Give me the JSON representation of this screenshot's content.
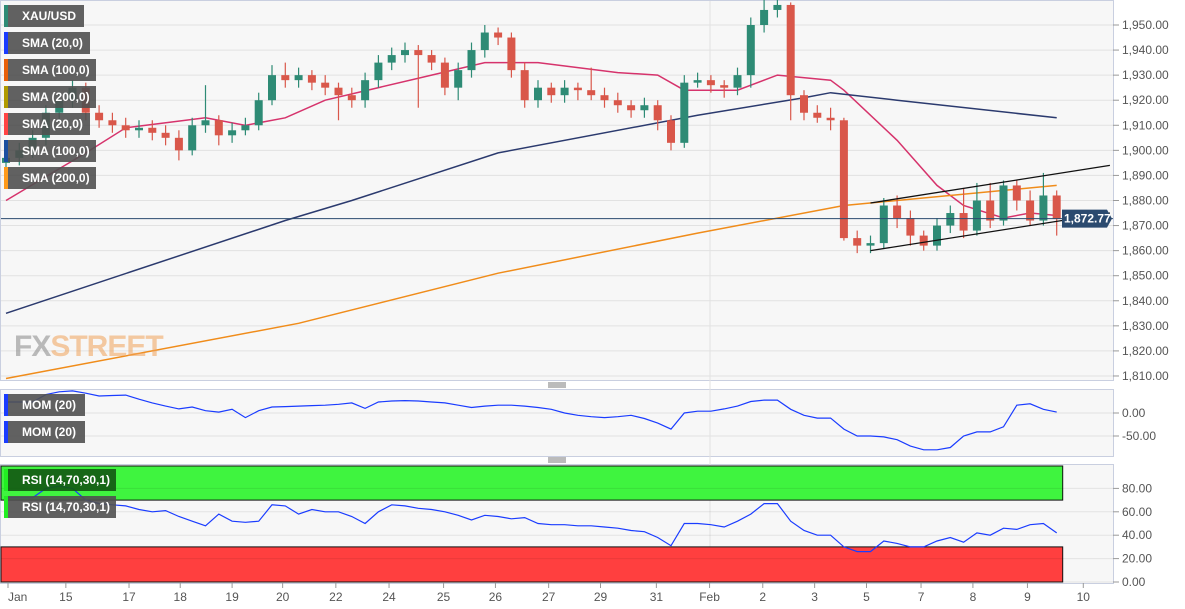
{
  "instrument": "XAU/USD",
  "legend": {
    "main": [
      {
        "label": "XAU/USD",
        "color": "#2e8b75"
      },
      {
        "label": "SMA (20,0)",
        "color": "#1a3cff"
      },
      {
        "label": "SMA (100,0)",
        "color": "#e8600a"
      },
      {
        "label": "SMA (200,0)",
        "color": "#b09a00"
      },
      {
        "label": "SMA (20,0)",
        "color": "#ff4444"
      },
      {
        "label": "SMA (100,0)",
        "color": "#1a4fa0"
      },
      {
        "label": "SMA (200,0)",
        "color": "#ff9a1a"
      }
    ],
    "mom": [
      {
        "label": "MOM (20)",
        "color": "#1a3cff"
      },
      {
        "label": "MOM (20)",
        "color": "#1a3cff"
      }
    ],
    "rsi": [
      {
        "label": "RSI (14,70,30,1)",
        "color": "#22ee22"
      },
      {
        "label": "RSI (14,70,30,1)",
        "color": "#22ee22"
      }
    ]
  },
  "watermark": {
    "part1": "FX",
    "part2": "STREET"
  },
  "colors": {
    "up": "#2e8b75",
    "down": "#d9574a",
    "sma20": "#d6336c",
    "sma100": "#2b3a6e",
    "sma200": "#f08c1a",
    "channel": "#111111",
    "last_price": "#2b4a6f",
    "overbought": "#3ff43f",
    "oversold": "#ff3f3f",
    "indicator": "#1a3cff"
  },
  "chart_data": [
    {
      "type": "candlestick",
      "title": "XAU/USD",
      "ylim": [
        1805,
        1962
      ],
      "y_ticks": [
        "1,810.00",
        "1,820.00",
        "1,830.00",
        "1,840.00",
        "1,850.00",
        "1,860.00",
        "1,870.00",
        "1,880.00",
        "1,890.00",
        "1,900.00",
        "1,910.00",
        "1,920.00",
        "1,930.00",
        "1,940.00",
        "1,950.00"
      ],
      "y_tick_values": [
        1810,
        1820,
        1830,
        1840,
        1850,
        1860,
        1870,
        1880,
        1890,
        1900,
        1910,
        1920,
        1930,
        1940,
        1950
      ],
      "x_ticks": [
        "Jan",
        "15",
        "17",
        "18",
        "19",
        "20",
        "22",
        "24",
        "25",
        "26",
        "27",
        "29",
        "31",
        "Feb",
        "2",
        "3",
        "5",
        "7",
        "8",
        "9",
        "10"
      ],
      "last_price": 1872.77,
      "last_price_label": "1,872.77",
      "grid": true,
      "ohlc": [
        [
          1895,
          1899,
          1892,
          1897
        ],
        [
          1897,
          1903,
          1894,
          1900
        ],
        [
          1900,
          1908,
          1897,
          1905
        ],
        [
          1905,
          1918,
          1902,
          1915
        ],
        [
          1915,
          1923,
          1912,
          1920
        ],
        [
          1920,
          1928,
          1917,
          1925
        ],
        [
          1925,
          1927,
          1912,
          1915
        ],
        [
          1915,
          1918,
          1909,
          1912
        ],
        [
          1912,
          1915,
          1907,
          1910
        ],
        [
          1910,
          1913,
          1905,
          1908
        ],
        [
          1908,
          1912,
          1905,
          1909
        ],
        [
          1909,
          1912,
          1904,
          1907
        ],
        [
          1907,
          1910,
          1902,
          1905
        ],
        [
          1905,
          1908,
          1896,
          1900
        ],
        [
          1900,
          1913,
          1898,
          1910
        ],
        [
          1910,
          1926,
          1907,
          1912
        ],
        [
          1912,
          1914,
          1902,
          1906
        ],
        [
          1906,
          1911,
          1903,
          1908
        ],
        [
          1908,
          1913,
          1906,
          1910
        ],
        [
          1910,
          1923,
          1908,
          1920
        ],
        [
          1920,
          1934,
          1918,
          1930
        ],
        [
          1930,
          1935,
          1925,
          1928
        ],
        [
          1928,
          1933,
          1925,
          1930
        ],
        [
          1930,
          1932,
          1924,
          1927
        ],
        [
          1927,
          1930,
          1922,
          1925
        ],
        [
          1925,
          1927,
          1912,
          1922
        ],
        [
          1922,
          1925,
          1917,
          1920
        ],
        [
          1920,
          1931,
          1917,
          1928
        ],
        [
          1928,
          1938,
          1925,
          1935
        ],
        [
          1935,
          1941,
          1932,
          1938
        ],
        [
          1938,
          1943,
          1935,
          1940
        ],
        [
          1940,
          1942,
          1917,
          1938
        ],
        [
          1938,
          1940,
          1932,
          1935
        ],
        [
          1935,
          1937,
          1922,
          1925
        ],
        [
          1925,
          1935,
          1920,
          1932
        ],
        [
          1932,
          1943,
          1929,
          1940
        ],
        [
          1940,
          1950,
          1937,
          1947
        ],
        [
          1947,
          1949,
          1942,
          1945
        ],
        [
          1945,
          1947,
          1929,
          1932
        ],
        [
          1932,
          1935,
          1917,
          1920
        ],
        [
          1920,
          1928,
          1917,
          1925
        ],
        [
          1925,
          1927,
          1919,
          1922
        ],
        [
          1922,
          1928,
          1919,
          1925
        ],
        [
          1925,
          1927,
          1920,
          1924
        ],
        [
          1924,
          1933,
          1920,
          1922
        ],
        [
          1922,
          1925,
          1917,
          1920
        ],
        [
          1920,
          1923,
          1915,
          1918
        ],
        [
          1918,
          1920,
          1913,
          1916
        ],
        [
          1916,
          1921,
          1913,
          1918
        ],
        [
          1918,
          1920,
          1908,
          1912
        ],
        [
          1912,
          1914,
          1900,
          1903
        ],
        [
          1903,
          1930,
          1901,
          1927
        ],
        [
          1927,
          1931,
          1925,
          1928
        ],
        [
          1928,
          1930,
          1923,
          1926
        ],
        [
          1926,
          1928,
          1921,
          1925
        ],
        [
          1925,
          1933,
          1922,
          1930
        ],
        [
          1930,
          1953,
          1925,
          1950
        ],
        [
          1950,
          1961,
          1947,
          1956
        ],
        [
          1956,
          1960,
          1953,
          1958
        ],
        [
          1958,
          1959,
          1912,
          1922
        ],
        [
          1922,
          1924,
          1912,
          1915
        ],
        [
          1915,
          1918,
          1911,
          1913
        ],
        [
          1913,
          1917,
          1908,
          1912
        ],
        [
          1912,
          1913,
          1864,
          1865
        ],
        [
          1865,
          1868,
          1859,
          1862
        ],
        [
          1862,
          1866,
          1859,
          1863
        ],
        [
          1863,
          1881,
          1861,
          1878
        ],
        [
          1878,
          1882,
          1869,
          1873
        ],
        [
          1873,
          1876,
          1862,
          1866
        ],
        [
          1866,
          1868,
          1860,
          1862
        ],
        [
          1862,
          1873,
          1860,
          1870
        ],
        [
          1870,
          1878,
          1867,
          1875
        ],
        [
          1875,
          1885,
          1865,
          1868
        ],
        [
          1868,
          1887,
          1866,
          1880
        ],
        [
          1880,
          1887,
          1869,
          1872
        ],
        [
          1872,
          1888,
          1870,
          1886
        ],
        [
          1886,
          1888,
          1876,
          1880
        ],
        [
          1880,
          1884,
          1870,
          1872
        ],
        [
          1872,
          1891,
          1870,
          1882
        ],
        [
          1882,
          1884,
          1866,
          1872.77
        ]
      ],
      "overlays": [
        {
          "name": "SMA (20,0)",
          "key": "sma20",
          "points": [
            [
              0,
              1880
            ],
            [
              6,
              1899
            ],
            [
              9,
              1909
            ],
            [
              15,
              1913
            ],
            [
              18,
              1910
            ],
            [
              21,
              1913
            ],
            [
              24,
              1920
            ],
            [
              32,
              1930
            ],
            [
              36,
              1935
            ],
            [
              40,
              1935
            ],
            [
              46,
              1931
            ],
            [
              49,
              1930
            ],
            [
              51,
              1924
            ],
            [
              55,
              1924
            ],
            [
              58,
              1930
            ],
            [
              62,
              1928
            ],
            [
              63,
              1924
            ],
            [
              67,
              1904
            ],
            [
              70,
              1886
            ],
            [
              72,
              1878
            ],
            [
              75,
              1873
            ],
            [
              77,
              1875
            ],
            [
              79,
              1874
            ]
          ]
        },
        {
          "name": "SMA (100,0)",
          "key": "sma100",
          "points": [
            [
              0,
              1835
            ],
            [
              21,
              1872
            ],
            [
              26,
              1880
            ],
            [
              37,
              1899
            ],
            [
              52,
              1914
            ],
            [
              60,
              1921
            ],
            [
              62,
              1923
            ],
            [
              67,
              1920
            ],
            [
              79,
              1913
            ]
          ]
        },
        {
          "name": "SMA (200,0)",
          "key": "sma200",
          "points": [
            [
              0,
              1809
            ],
            [
              22,
              1831
            ],
            [
              37,
              1851
            ],
            [
              52,
              1867
            ],
            [
              63,
              1878
            ],
            [
              79,
              1886
            ]
          ]
        }
      ],
      "channel": {
        "upper": [
          [
            65,
            1879
          ],
          [
            83,
            1894
          ]
        ],
        "lower": [
          [
            65,
            1860
          ],
          [
            83,
            1875
          ]
        ]
      }
    },
    {
      "type": "line",
      "title": "MOM (20)",
      "ylim": [
        -105,
        50
      ],
      "y_ticks": [
        "0.00",
        "-50.00"
      ],
      "y_tick_values": [
        0,
        -50
      ],
      "values": [
        24,
        24,
        24,
        40,
        46,
        48,
        43,
        37,
        38,
        39,
        30,
        22,
        15,
        9,
        13,
        5,
        2,
        8,
        -10,
        5,
        13,
        14,
        15,
        16,
        17,
        19,
        22,
        10,
        24,
        26,
        27,
        26,
        24,
        22,
        17,
        12,
        15,
        17,
        17,
        15,
        12,
        8,
        0,
        -5,
        -8,
        -10,
        -8,
        -5,
        -12,
        -22,
        -35,
        0,
        4,
        4,
        9,
        15,
        25,
        28,
        28,
        8,
        -5,
        -11,
        -11,
        -35,
        -50,
        -50,
        -52,
        -58,
        -72,
        -80,
        -80,
        -75,
        -50,
        -41,
        -41,
        -30,
        17,
        20,
        8,
        2
      ]
    },
    {
      "type": "line",
      "title": "RSI (14,70,30,1)",
      "ylim": [
        0,
        100
      ],
      "y_ticks": [
        "0.00",
        "20.00",
        "40.00",
        "60.00",
        "80.00"
      ],
      "y_tick_values": [
        0,
        20,
        40,
        60,
        80
      ],
      "overbought": 70,
      "oversold": 30,
      "values": [
        72,
        72,
        72,
        80,
        82,
        80,
        70,
        67,
        66,
        65,
        62,
        60,
        61,
        56,
        52,
        48,
        58,
        52,
        51,
        52,
        66,
        65,
        58,
        62,
        60,
        60,
        56,
        50,
        60,
        66,
        65,
        63,
        62,
        60,
        57,
        53,
        57,
        56,
        54,
        55,
        50,
        49,
        49,
        48,
        48,
        47,
        46,
        44,
        43,
        38,
        31,
        50,
        50,
        49,
        47,
        52,
        58,
        67,
        67,
        52,
        44,
        40,
        40,
        30,
        26,
        26,
        35,
        33,
        30,
        30,
        35,
        38,
        34,
        42,
        40,
        46,
        45,
        49,
        50,
        42
      ]
    }
  ]
}
